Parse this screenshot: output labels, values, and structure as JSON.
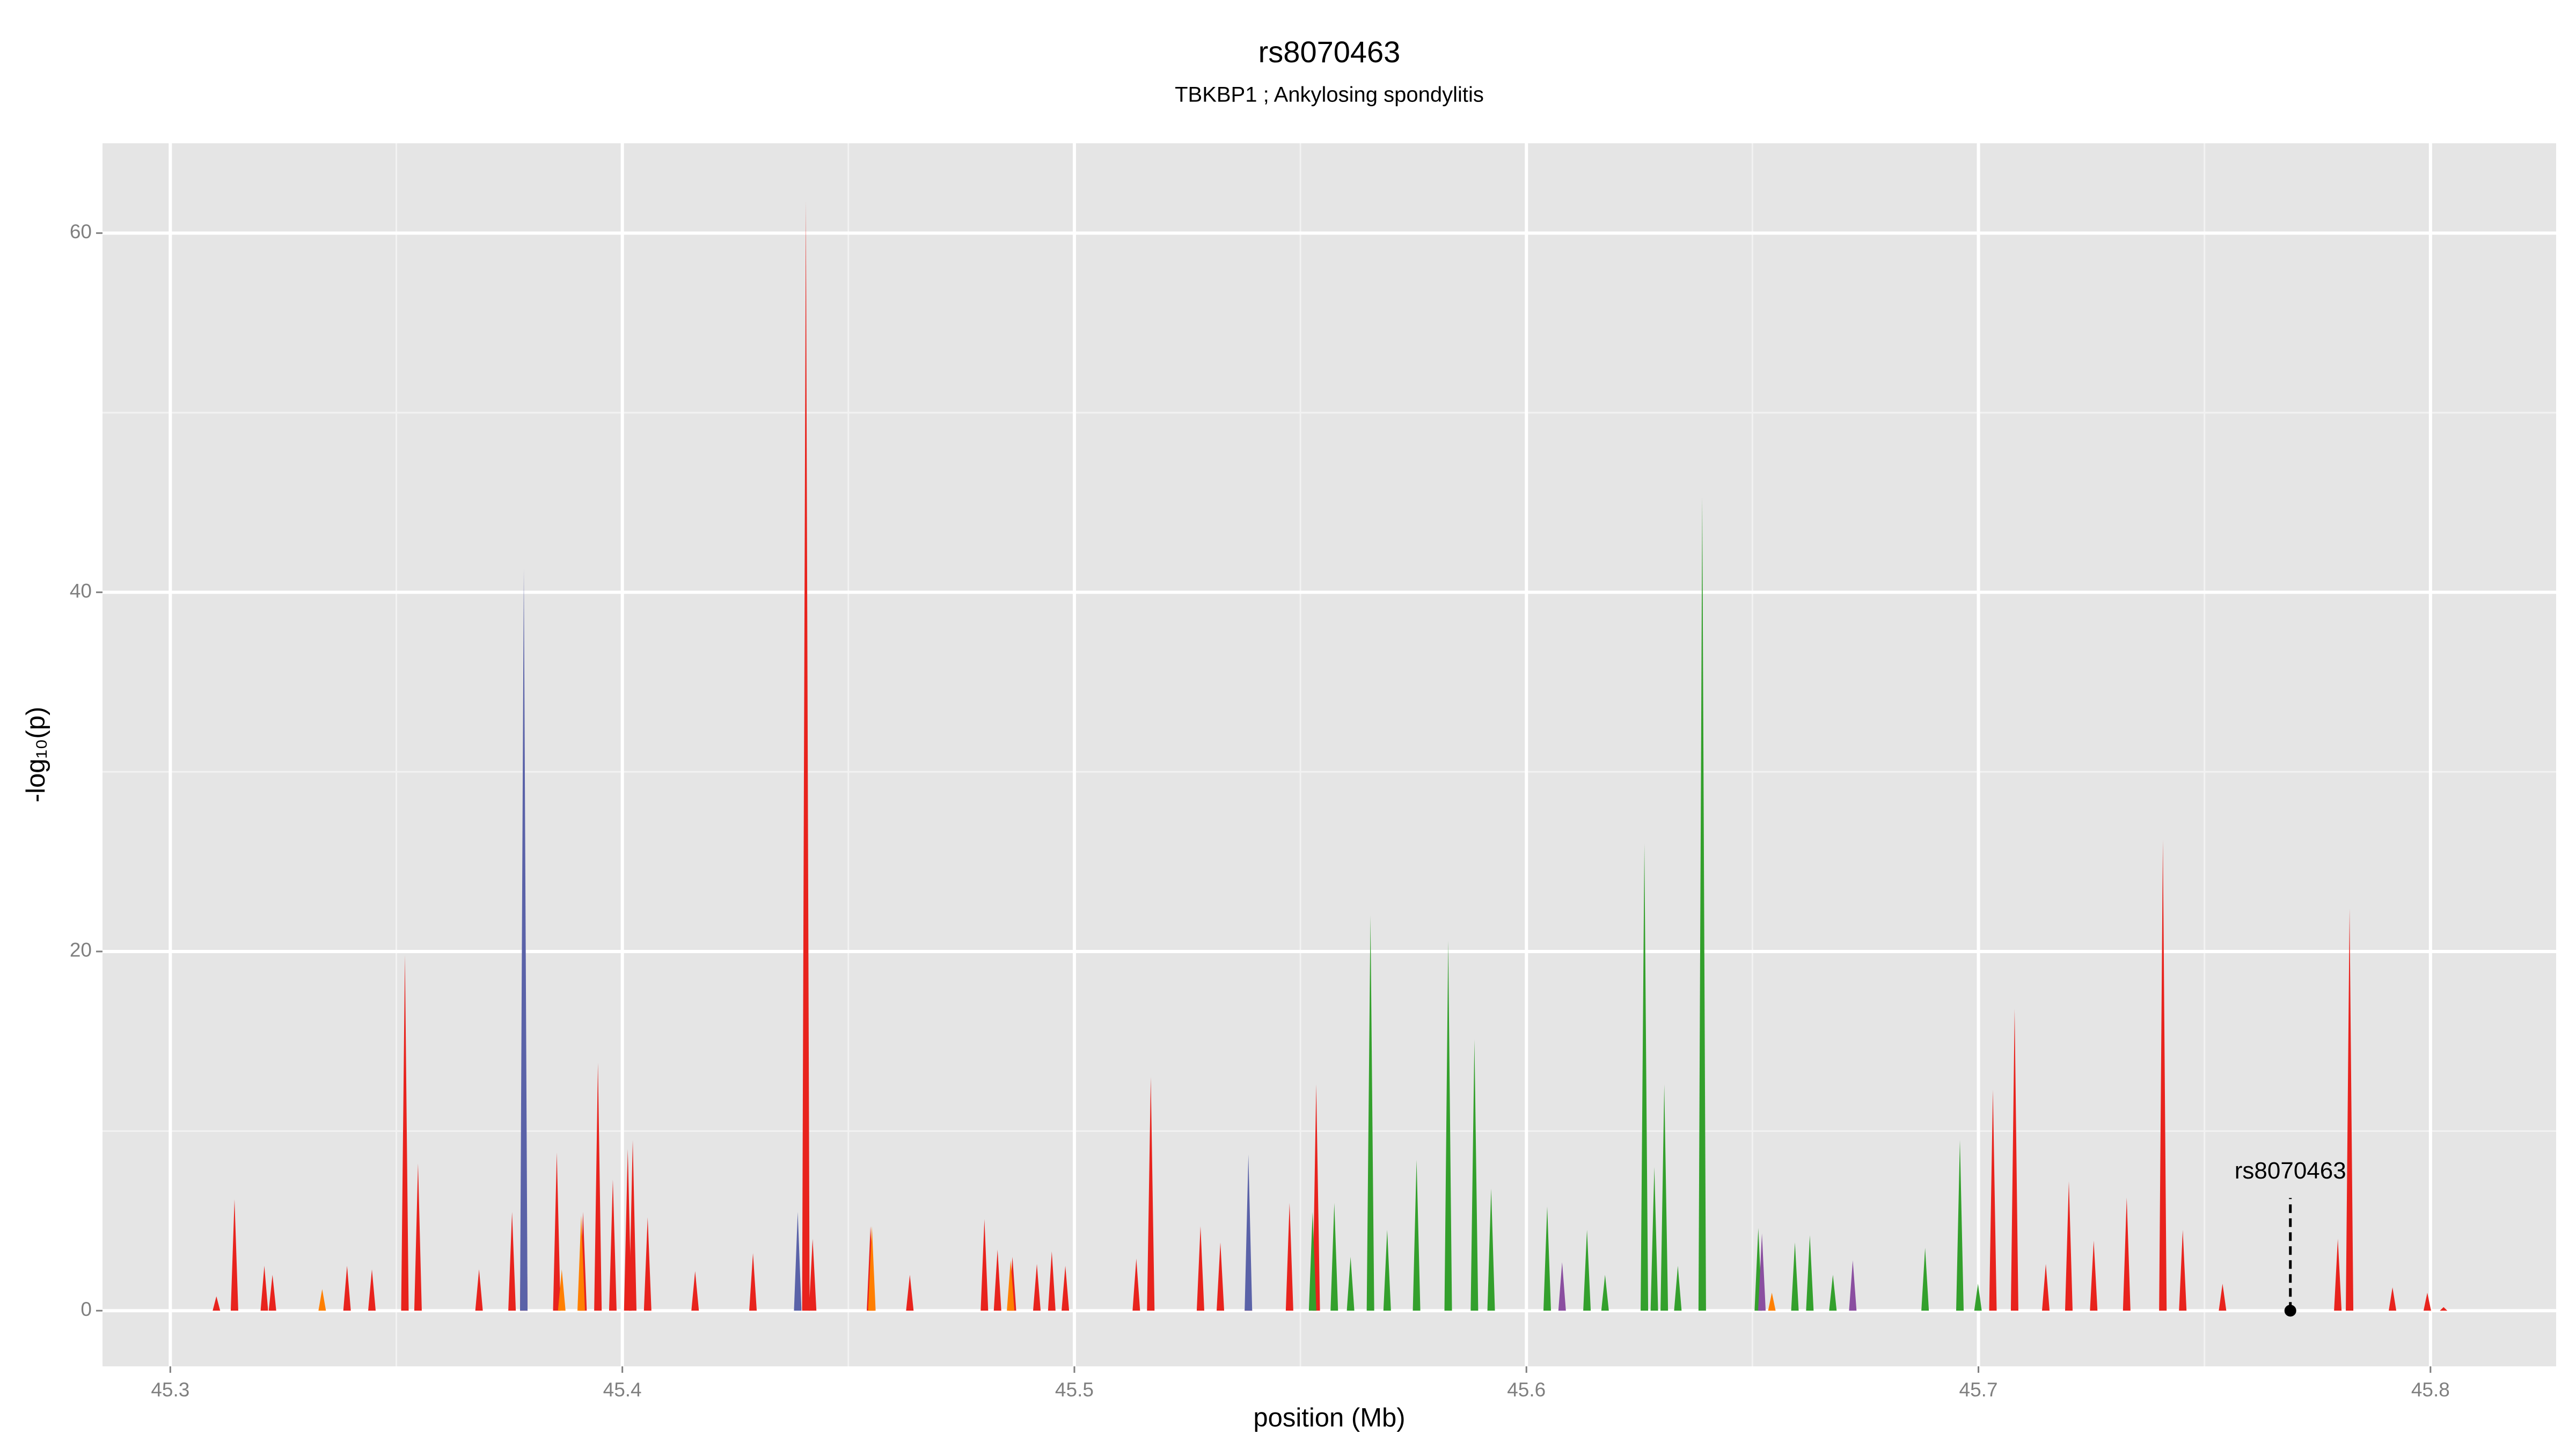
{
  "chart_data": {
    "type": "spike",
    "title": "rs8070463",
    "subtitle": "TBKBP1 ; Ankylosing spondylitis",
    "xlabel": "position (Mb)",
    "ylabel": "-log₁₀(p)",
    "xlim": [
      45.285,
      45.8278
    ],
    "ylim": [
      -3.1,
      65
    ],
    "xticks": [
      45.3,
      45.4,
      45.5,
      45.6,
      45.7,
      45.8
    ],
    "yticks": [
      0,
      20,
      40,
      60
    ],
    "x_minor_grid": [
      45.35,
      45.45,
      45.55,
      45.65,
      45.75
    ],
    "y_minor_grid": [
      10,
      30,
      50
    ],
    "grid": true,
    "background": "#e5e5e5",
    "series": [
      {
        "color": "#e8231d",
        "x": [
          45.3102,
          45.3142,
          45.3208,
          45.3226,
          45.3391,
          45.3446,
          45.3519,
          45.3548,
          45.3683,
          45.3756,
          45.3782,
          45.3855,
          45.3913,
          45.3946,
          45.3979,
          45.4012,
          45.4023,
          45.4056,
          45.4161,
          45.4289,
          45.4406,
          45.4421,
          45.4549,
          45.4636,
          45.4801,
          45.483,
          45.4863,
          45.4917,
          45.495,
          45.498,
          45.5137,
          45.5169,
          45.5279,
          45.5323,
          45.5385,
          45.5476,
          45.5535,
          45.7032,
          45.708,
          45.7149,
          45.72,
          45.7255,
          45.7328,
          45.7408,
          45.7452,
          45.754,
          45.7795,
          45.7821,
          45.7916,
          45.7993,
          45.8029
        ],
        "values": [
          0.8,
          6.2,
          2.5,
          2.0,
          2.5,
          2.3,
          19.8,
          8.2,
          2.3,
          5.5,
          28,
          8.8,
          5.5,
          13.8,
          7.3,
          9.0,
          9.5,
          5.2,
          2.2,
          3.2,
          61.8,
          4.0,
          4.7,
          2.0,
          5.1,
          3.4,
          3.0,
          2.6,
          3.3,
          2.5,
          2.9,
          13.0,
          4.7,
          3.8,
          3.0,
          6.0,
          12.6,
          12.3,
          16.8,
          2.6,
          7.2,
          3.9,
          6.3,
          26.2,
          4.5,
          1.5,
          4.0,
          22.4,
          1.3,
          1.0,
          0.2
        ]
      },
      {
        "color": "#ff7f00",
        "x": [
          45.3336,
          45.3866,
          45.3909,
          45.4552,
          45.4859,
          45.6543
        ],
        "values": [
          1.2,
          2.3,
          5.3,
          4.7,
          2.8,
          1.0
        ]
      },
      {
        "color": "#33a02c",
        "x": [
          45.5527,
          45.5575,
          45.5611,
          45.5655,
          45.5692,
          45.5757,
          45.5827,
          45.5885,
          45.5922,
          45.6046,
          45.6134,
          45.6174,
          45.6261,
          45.6283,
          45.6305,
          45.6335,
          45.6389,
          45.6513,
          45.6594,
          45.6627,
          45.6678,
          45.6882,
          45.6959,
          45.6999
        ],
        "values": [
          5.5,
          6.0,
          3.0,
          22.0,
          4.5,
          8.4,
          20.6,
          15.1,
          6.8,
          5.8,
          4.5,
          2.0,
          26.0,
          8.0,
          12.6,
          2.5,
          45.3,
          4.6,
          3.8,
          4.2,
          2.0,
          3.5,
          9.5,
          1.5
        ]
      },
      {
        "color": "#5a62a8",
        "x": [
          45.3782,
          45.4388,
          45.5385
        ],
        "values": [
          41.3,
          5.5,
          8.7
        ]
      },
      {
        "color": "#8a4ea0",
        "x": [
          45.6079,
          45.6521,
          45.6722
        ],
        "values": [
          2.7,
          4.3,
          2.8
        ]
      }
    ],
    "annotation": {
      "text": "rs8070463",
      "x": 45.769,
      "y": 0
    }
  }
}
